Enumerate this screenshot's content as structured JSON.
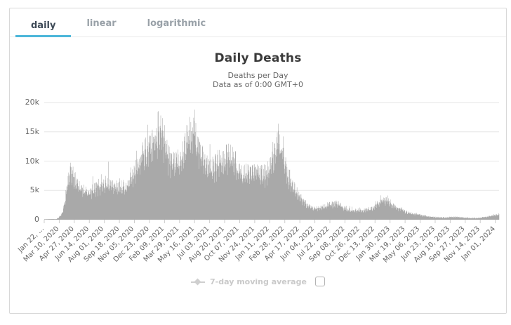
{
  "tabs": {
    "items": [
      {
        "label": "daily",
        "active": true
      },
      {
        "label": "linear",
        "active": false
      },
      {
        "label": "logarithmic",
        "active": false
      }
    ],
    "active_underline_color": "#4cb6d9"
  },
  "chart_data": {
    "type": "bar",
    "title": "Daily Deaths",
    "subtitle_line1": "Deaths per Day",
    "subtitle_line2": "Data as of 0:00 GMT+0",
    "ylim": [
      0,
      20000
    ],
    "y_tick_values": [
      0,
      5000,
      10000,
      15000,
      20000
    ],
    "y_tick_labels": [
      "0",
      "5k",
      "10k",
      "15k",
      "20k"
    ],
    "x_start_date": "2020-01-22",
    "x_end_date": "2024-01-13",
    "x_tick_interval_days": 48,
    "x_tick_labels": [
      "Jan 22, ...",
      "Mar 10, 2020",
      "Apr 27, 2020",
      "Jun 14, 2020",
      "Aug 01, 2020",
      "Sep 18, 2020",
      "Nov 05, 2020",
      "Dec 23, 2020",
      "Feb 09, 2021",
      "Mar 29, 2021",
      "May 16, 2021",
      "Jul 03, 2021",
      "Aug 20, 2021",
      "Oct 07, 2021",
      "Nov 24, 2021",
      "Jan 11, 2022",
      "Feb 28, 2022",
      "Apr 17, 2022",
      "Jun 04, 2022",
      "Jul 22, 2022",
      "Sep 08, 2022",
      "Oct 26, 2022",
      "Dec 13, 2022",
      "Jan 30, 2023",
      "Mar 19, 2023",
      "May 06, 2023",
      "Jun 23, 2023",
      "Aug 10, 2023",
      "Sep 27, 2023",
      "Nov 14, 2023",
      "Jan 01, 2024"
    ],
    "bar_color": "#a9a9a9",
    "grid_color": "#e6e6e6",
    "axis_line_color": "#cccccc",
    "series": [
      {
        "name": "Daily Deaths",
        "approx_weekly_points": [
          [
            "2020-01-22",
            15
          ],
          [
            "2020-02-05",
            80
          ],
          [
            "2020-02-18",
            110
          ],
          [
            "2020-02-28",
            70
          ],
          [
            "2020-03-10",
            420
          ],
          [
            "2020-03-20",
            1300
          ],
          [
            "2020-03-27",
            2800
          ],
          [
            "2020-04-03",
            5400
          ],
          [
            "2020-04-10",
            7000
          ],
          [
            "2020-04-17",
            8300
          ],
          [
            "2020-04-24",
            7400
          ],
          [
            "2020-05-01",
            6600
          ],
          [
            "2020-05-10",
            6000
          ],
          [
            "2020-05-20",
            5300
          ],
          [
            "2020-06-01",
            4800
          ],
          [
            "2020-06-10",
            4700
          ],
          [
            "2020-06-20",
            5000
          ],
          [
            "2020-07-01",
            5300
          ],
          [
            "2020-07-15",
            5800
          ],
          [
            "2020-08-01",
            6200
          ],
          [
            "2020-08-15",
            5900
          ],
          [
            "2020-09-01",
            5600
          ],
          [
            "2020-09-15",
            5400
          ],
          [
            "2020-10-01",
            5500
          ],
          [
            "2020-10-15",
            6100
          ],
          [
            "2020-11-01",
            7400
          ],
          [
            "2020-11-15",
            9500
          ],
          [
            "2020-12-01",
            11000
          ],
          [
            "2020-12-15",
            12300
          ],
          [
            "2021-01-01",
            13200
          ],
          [
            "2021-01-15",
            14500
          ],
          [
            "2021-01-26",
            16200
          ],
          [
            "2021-02-05",
            14200
          ],
          [
            "2021-02-15",
            11800
          ],
          [
            "2021-03-01",
            9900
          ],
          [
            "2021-03-15",
            9200
          ],
          [
            "2021-04-01",
            10600
          ],
          [
            "2021-04-15",
            12400
          ],
          [
            "2021-05-01",
            14400
          ],
          [
            "2021-05-08",
            15400
          ],
          [
            "2021-05-18",
            14200
          ],
          [
            "2021-06-01",
            11900
          ],
          [
            "2021-06-15",
            10100
          ],
          [
            "2021-07-01",
            8500
          ],
          [
            "2021-07-15",
            8800
          ],
          [
            "2021-08-01",
            9800
          ],
          [
            "2021-08-18",
            10600
          ],
          [
            "2021-09-01",
            11000
          ],
          [
            "2021-09-15",
            10200
          ],
          [
            "2021-10-01",
            8900
          ],
          [
            "2021-10-15",
            8100
          ],
          [
            "2021-11-01",
            7800
          ],
          [
            "2021-11-15",
            7700
          ],
          [
            "2021-12-01",
            8200
          ],
          [
            "2021-12-15",
            8100
          ],
          [
            "2022-01-01",
            7800
          ],
          [
            "2022-01-15",
            9400
          ],
          [
            "2022-02-01",
            11700
          ],
          [
            "2022-02-09",
            12900
          ],
          [
            "2022-02-20",
            11600
          ],
          [
            "2022-03-01",
            9600
          ],
          [
            "2022-03-15",
            7100
          ],
          [
            "2022-04-01",
            5100
          ],
          [
            "2022-04-15",
            3900
          ],
          [
            "2022-05-01",
            3000
          ],
          [
            "2022-05-15",
            2400
          ],
          [
            "2022-06-01",
            1900
          ],
          [
            "2022-06-15",
            1900
          ],
          [
            "2022-07-01",
            2200
          ],
          [
            "2022-07-15",
            2500
          ],
          [
            "2022-08-01",
            2800
          ],
          [
            "2022-08-15",
            2700
          ],
          [
            "2022-09-01",
            2200
          ],
          [
            "2022-09-15",
            1900
          ],
          [
            "2022-10-01",
            1700
          ],
          [
            "2022-10-15",
            1600
          ],
          [
            "2022-11-01",
            1600
          ],
          [
            "2022-11-15",
            1700
          ],
          [
            "2022-12-01",
            1900
          ],
          [
            "2022-12-15",
            2400
          ],
          [
            "2023-01-01",
            3200
          ],
          [
            "2023-01-10",
            3500
          ],
          [
            "2023-01-20",
            3300
          ],
          [
            "2023-02-01",
            2800
          ],
          [
            "2023-02-15",
            2300
          ],
          [
            "2023-03-01",
            1800
          ],
          [
            "2023-03-15",
            1500
          ],
          [
            "2023-04-01",
            1200
          ],
          [
            "2023-04-15",
            1000
          ],
          [
            "2023-05-01",
            850
          ],
          [
            "2023-05-15",
            700
          ],
          [
            "2023-06-01",
            550
          ],
          [
            "2023-06-15",
            470
          ],
          [
            "2023-07-01",
            420
          ],
          [
            "2023-07-15",
            380
          ],
          [
            "2023-08-01",
            420
          ],
          [
            "2023-08-15",
            460
          ],
          [
            "2023-09-01",
            450
          ],
          [
            "2023-09-15",
            400
          ],
          [
            "2023-10-01",
            340
          ],
          [
            "2023-10-15",
            300
          ],
          [
            "2023-11-01",
            300
          ],
          [
            "2023-11-15",
            360
          ],
          [
            "2023-12-01",
            470
          ],
          [
            "2023-12-15",
            620
          ],
          [
            "2024-01-01",
            820
          ],
          [
            "2024-01-13",
            950
          ]
        ]
      }
    ],
    "spike_days": [
      [
        "2020-06-25",
        7400
      ],
      [
        "2020-08-14",
        9900
      ],
      [
        "2021-07-04",
        12900
      ]
    ],
    "legend": {
      "label": "7-day moving average",
      "checkbox_checked": false
    }
  }
}
